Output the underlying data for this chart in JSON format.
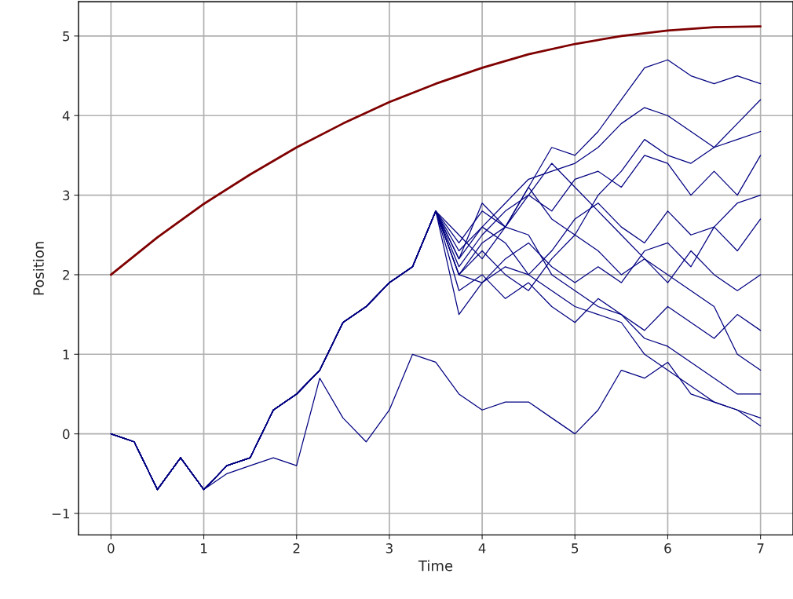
{
  "chart_data": {
    "type": "line",
    "xlabel": "Time",
    "ylabel": "Position",
    "xlim": [
      -0.35,
      7.35
    ],
    "ylim": [
      -1.27,
      5.43
    ],
    "xticks": [
      0,
      1,
      2,
      3,
      4,
      5,
      6,
      7
    ],
    "yticks": [
      {
        "value": -1,
        "label": "−1"
      },
      0,
      1,
      2,
      3,
      4,
      5
    ],
    "grid": true,
    "line_style": "solid",
    "marker": "none",
    "x": [
      0,
      0.25,
      0.5,
      0.75,
      1,
      1.25,
      1.5,
      1.75,
      2,
      2.25,
      2.5,
      2.75,
      3,
      3.25,
      3.5,
      3.75,
      4,
      4.25,
      4.5,
      4.75,
      5,
      5.25,
      5.5,
      5.75,
      6,
      6.25,
      6.5,
      6.75,
      7
    ],
    "series": [
      {
        "color": "#7f0000",
        "x": [
          0,
          0.5,
          1,
          1.5,
          2,
          2.5,
          3,
          3.5,
          4,
          4.5,
          5,
          5.5,
          6,
          6.5,
          7
        ],
        "values": [
          2.0,
          2.47,
          2.89,
          3.26,
          3.6,
          3.9,
          4.17,
          4.4,
          4.6,
          4.77,
          4.9,
          5.0,
          5.07,
          5.11,
          5.12
        ]
      },
      {
        "color": "#000080",
        "values": [
          0,
          -0.1,
          -0.7,
          -0.3,
          -0.7,
          -0.5,
          -0.4,
          -0.3,
          -0.4,
          0.7,
          0.2,
          -0.1,
          0.3,
          1.0,
          0.9,
          0.5,
          0.3,
          0.4,
          0.4,
          0.2,
          0.0,
          0.3,
          0.8,
          0.7,
          0.9,
          0.5,
          0.4,
          0.3,
          0.1
        ]
      },
      {
        "color": "#000080",
        "values": [
          0,
          -0.1,
          -0.7,
          -0.3,
          -0.7,
          -0.4,
          -0.3,
          0.3,
          0.5,
          0.8,
          1.4,
          1.6,
          1.9,
          2.1,
          2.8,
          2.2,
          2.9,
          2.6,
          3.1,
          3.6,
          3.5,
          3.8,
          4.2,
          4.6,
          4.7,
          4.5,
          4.4,
          4.5,
          4.4
        ]
      },
      {
        "color": "#000080",
        "values": [
          0,
          -0.1,
          -0.7,
          -0.3,
          -0.7,
          -0.4,
          -0.3,
          0.3,
          0.5,
          0.8,
          1.4,
          1.6,
          1.9,
          2.1,
          2.8,
          1.5,
          1.9,
          2.1,
          2.0,
          1.8,
          1.6,
          1.5,
          1.4,
          1.0,
          0.8,
          0.6,
          0.4,
          0.3,
          0.2
        ]
      },
      {
        "color": "#000080",
        "values": [
          0,
          -0.1,
          -0.7,
          -0.3,
          -0.7,
          -0.4,
          -0.3,
          0.3,
          0.5,
          0.8,
          1.4,
          1.6,
          1.9,
          2.1,
          2.8,
          2.0,
          2.4,
          2.6,
          2.5,
          2.0,
          1.8,
          1.6,
          1.5,
          1.2,
          1.1,
          0.9,
          0.7,
          0.5,
          0.5
        ]
      },
      {
        "color": "#000080",
        "values": [
          0,
          -0.1,
          -0.7,
          -0.3,
          -0.7,
          -0.4,
          -0.3,
          0.3,
          0.5,
          0.8,
          1.4,
          1.6,
          1.9,
          2.1,
          2.8,
          2.3,
          2.6,
          2.9,
          3.2,
          3.3,
          3.4,
          3.6,
          3.9,
          4.1,
          4.0,
          3.8,
          3.6,
          3.9,
          4.2
        ]
      },
      {
        "color": "#000080",
        "values": [
          0,
          -0.1,
          -0.7,
          -0.3,
          -0.7,
          -0.4,
          -0.3,
          0.3,
          0.5,
          0.8,
          1.4,
          1.6,
          1.9,
          2.1,
          2.8,
          2.1,
          2.5,
          2.8,
          3.0,
          2.8,
          3.2,
          3.3,
          3.1,
          3.5,
          3.4,
          3.0,
          3.3,
          3.0,
          3.5
        ]
      },
      {
        "color": "#000080",
        "values": [
          0,
          -0.1,
          -0.7,
          -0.3,
          -0.7,
          -0.4,
          -0.3,
          0.3,
          0.5,
          0.8,
          1.4,
          1.6,
          1.9,
          2.1,
          2.8,
          2.0,
          2.3,
          2.0,
          1.8,
          2.2,
          2.5,
          2.3,
          2.0,
          2.2,
          1.9,
          2.3,
          2.0,
          1.8,
          2.0
        ]
      },
      {
        "color": "#000080",
        "values": [
          0,
          -0.1,
          -0.7,
          -0.3,
          -0.7,
          -0.4,
          -0.3,
          0.3,
          0.5,
          0.8,
          1.4,
          1.6,
          1.9,
          2.1,
          2.8,
          2.2,
          2.6,
          2.4,
          2.0,
          2.3,
          2.7,
          2.9,
          2.6,
          2.4,
          2.8,
          2.5,
          2.6,
          2.9,
          3.0
        ]
      },
      {
        "color": "#000080",
        "values": [
          0,
          -0.1,
          -0.7,
          -0.3,
          -0.7,
          -0.4,
          -0.3,
          0.3,
          0.5,
          0.8,
          1.4,
          1.6,
          1.9,
          2.1,
          2.8,
          1.8,
          2.0,
          1.7,
          1.9,
          1.6,
          1.4,
          1.7,
          1.5,
          1.3,
          1.6,
          1.4,
          1.2,
          1.5,
          1.3
        ]
      },
      {
        "color": "#000080",
        "values": [
          0,
          -0.1,
          -0.7,
          -0.3,
          -0.7,
          -0.4,
          -0.3,
          0.3,
          0.5,
          0.8,
          1.4,
          1.6,
          1.9,
          2.1,
          2.8,
          2.4,
          2.8,
          2.6,
          3.0,
          3.4,
          3.1,
          2.8,
          2.5,
          2.2,
          2.0,
          1.8,
          1.6,
          1.0,
          0.8
        ]
      },
      {
        "color": "#000080",
        "values": [
          0,
          -0.1,
          -0.7,
          -0.3,
          -0.7,
          -0.4,
          -0.3,
          0.3,
          0.5,
          0.8,
          1.4,
          1.6,
          1.9,
          2.1,
          2.8,
          2.0,
          1.9,
          2.2,
          2.4,
          2.1,
          1.9,
          2.1,
          1.9,
          2.3,
          2.4,
          2.1,
          2.6,
          2.3,
          2.7
        ]
      },
      {
        "color": "#000080",
        "values": [
          0,
          -0.1,
          -0.7,
          -0.3,
          -0.7,
          -0.4,
          -0.3,
          0.3,
          0.5,
          0.8,
          1.4,
          1.6,
          1.9,
          2.1,
          2.8,
          2.5,
          2.2,
          2.6,
          3.1,
          2.7,
          2.5,
          3.0,
          3.3,
          3.7,
          3.5,
          3.4,
          3.6,
          3.7,
          3.8
        ]
      }
    ]
  }
}
